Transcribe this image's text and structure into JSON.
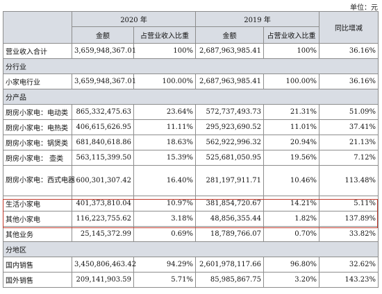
{
  "unit_label": "单位：元",
  "header": {
    "year_2020": "2020 年",
    "year_2019": "2019 年",
    "yoy": "同比增减",
    "amount": "金额",
    "ratio": "占营业收入比重"
  },
  "rows": [
    {
      "label": "营业收入合计",
      "a2020": "3,659,948,367.01",
      "r2020": "100%",
      "a2019": "2,687,963,985.41",
      "r2019": "100%",
      "yoy": "36.16%"
    },
    {
      "section": "分行业"
    },
    {
      "label": "小家电行业",
      "a2020": "3,659,948,367.01",
      "r2020": "100.00%",
      "a2019": "2,687,963,985.41",
      "r2019": "100.00%",
      "yoy": "36.16%"
    },
    {
      "section": "分产品"
    },
    {
      "label": "厨房小家电：电动类",
      "a2020": "865,332,475.63",
      "r2020": "23.64%",
      "a2019": "572,737,493.73",
      "r2019": "21.31%",
      "yoy": "51.09%"
    },
    {
      "label": "厨房小家电：电热类",
      "a2020": "406,615,626.95",
      "r2020": "11.11%",
      "a2019": "295,923,690.52",
      "r2019": "11.01%",
      "yoy": "37.41%"
    },
    {
      "label": "厨房小家电：锅煲类",
      "a2020": "681,840,618.86",
      "r2020": "18.63%",
      "a2019": "562,922,996.32",
      "r2019": "20.94%",
      "yoy": "21.13%"
    },
    {
      "label": "厨房小家电： 壶类",
      "a2020": "563,115,399.50",
      "r2020": "15.39%",
      "a2019": "525,681,050.95",
      "r2019": "19.56%",
      "yoy": "7.12%"
    },
    {
      "label": "厨房小家电：西式电器",
      "a2020": "600,301,307.42",
      "r2020": "16.40%",
      "a2019": "281,197,911.71",
      "r2019": "10.46%",
      "yoy": "113.48%"
    },
    {
      "label": "生活小家电",
      "a2020": "401,373,810.04",
      "r2020": "10.97%",
      "a2019": "381,854,720.67",
      "r2019": "14.21%",
      "yoy": "5.11%"
    },
    {
      "label": "其他小家电",
      "a2020": "116,223,755.62",
      "r2020": "3.18%",
      "a2019": "48,856,355.44",
      "r2019": "1.82%",
      "yoy": "137.89%"
    },
    {
      "label": "其他业务",
      "a2020": "25,145,372.99",
      "r2020": "0.69%",
      "a2019": "18,789,766.07",
      "r2019": "0.70%",
      "yoy": "33.82%"
    },
    {
      "section": "分地区"
    },
    {
      "label": "国内销售",
      "a2020": "3,450,806,463.42",
      "r2020": "94.29%",
      "a2019": "2,601,978,117.66",
      "r2019": "96.80%",
      "yoy": "32.62%"
    },
    {
      "label": "国外销售",
      "a2020": "209,141,903.59",
      "r2020": "5.71%",
      "a2019": "85,985,867.75",
      "r2019": "3.20%",
      "yoy": "143.23%"
    }
  ],
  "colors": {
    "header_bg": "#d9dde4",
    "highlight": "#c0392b",
    "border": "#8c8c8c"
  }
}
